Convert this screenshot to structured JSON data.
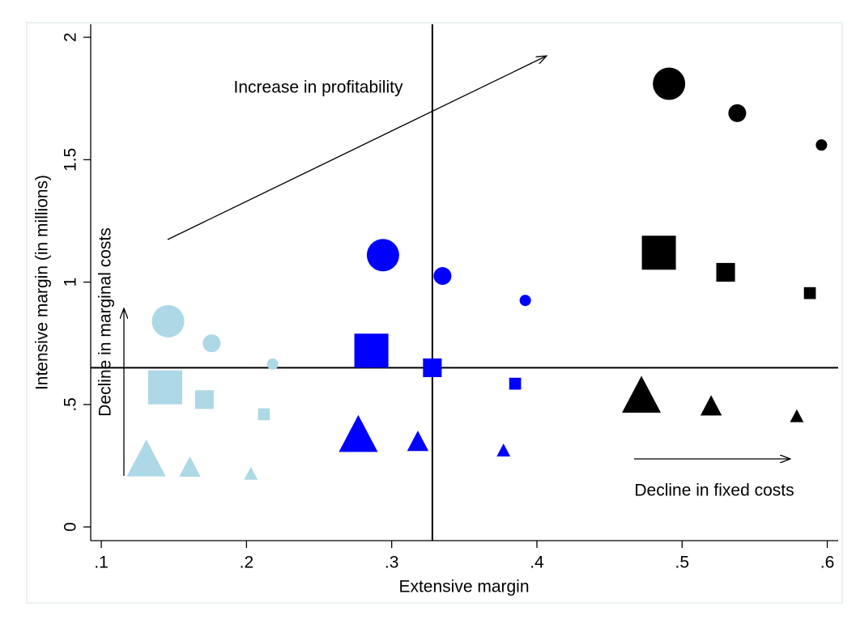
{
  "chart_data": {
    "type": "scatter",
    "x_label": "Extensive margin",
    "y_label": "Intensive margin (in millions)",
    "annotations": [
      "Increase in profitability",
      "Decline in marginal costs",
      "Decline in fixed costs"
    ],
    "xlim": [
      0.0927,
      0.6075
    ],
    "ylim": [
      -0.056,
      2.053
    ],
    "xticks": [
      {
        "value": 0.1,
        "label": ".1"
      },
      {
        "value": 0.2,
        "label": ".2"
      },
      {
        "value": 0.3,
        "label": ".3"
      },
      {
        "value": 0.4,
        "label": ".4"
      },
      {
        "value": 0.5,
        "label": ".5"
      },
      {
        "value": 0.6,
        "label": ".6"
      }
    ],
    "yticks": [
      0,
      {
        "value": 0.5,
        "label": ".5"
      },
      1,
      1.5,
      2
    ],
    "vlines": [
      0.328
    ],
    "hlines": [
      0.65
    ],
    "series": [
      {
        "color": "#000000",
        "marker": "circle",
        "x": [
          0.491,
          0.538,
          0.596
        ],
        "values": [
          1.81,
          1.69,
          1.56
        ],
        "sizes": [
          3,
          2,
          1
        ]
      },
      {
        "color": "#000000",
        "marker": "square",
        "x": [
          0.484,
          0.53,
          0.588
        ],
        "values": [
          1.12,
          1.04,
          0.955
        ],
        "sizes": [
          3,
          2,
          1
        ]
      },
      {
        "color": "#000000",
        "marker": "triangle",
        "x": [
          0.472,
          0.52,
          0.579
        ],
        "values": [
          0.53,
          0.49,
          0.45
        ],
        "sizes": [
          3,
          2,
          1
        ]
      },
      {
        "color": "#0000ff",
        "marker": "circle",
        "x": [
          0.294,
          0.335,
          0.392
        ],
        "values": [
          1.11,
          1.025,
          0.925
        ],
        "sizes": [
          3,
          2,
          1
        ]
      },
      {
        "color": "#0000ff",
        "marker": "square",
        "x": [
          0.286,
          0.328,
          0.385
        ],
        "values": [
          0.72,
          0.65,
          0.585
        ],
        "sizes": [
          3,
          2,
          1
        ]
      },
      {
        "color": "#0000ff",
        "marker": "triangle",
        "x": [
          0.277,
          0.318,
          0.377
        ],
        "values": [
          0.37,
          0.345,
          0.31
        ],
        "sizes": [
          3,
          2,
          1
        ]
      },
      {
        "color": "#add8e6",
        "marker": "circle",
        "x": [
          0.146,
          0.176,
          0.218
        ],
        "values": [
          0.84,
          0.75,
          0.665
        ],
        "sizes": [
          3,
          2,
          1
        ]
      },
      {
        "color": "#add8e6",
        "marker": "square",
        "x": [
          0.144,
          0.171,
          0.212
        ],
        "values": [
          0.57,
          0.52,
          0.46
        ],
        "sizes": [
          3,
          2,
          1
        ]
      },
      {
        "color": "#add8e6",
        "marker": "triangle",
        "x": [
          0.131,
          0.161,
          0.203
        ],
        "values": [
          0.27,
          0.24,
          0.215
        ],
        "sizes": [
          3,
          2,
          1
        ]
      }
    ]
  }
}
